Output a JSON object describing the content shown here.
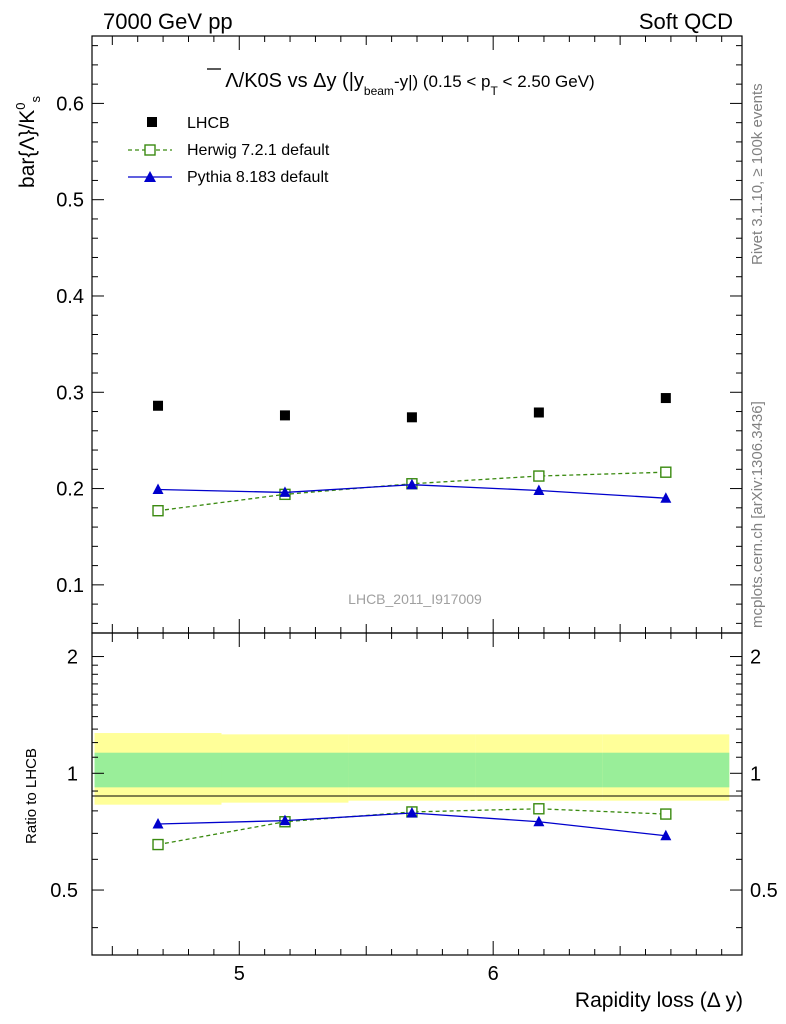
{
  "header": {
    "left_label": "7000 GeV pp",
    "right_label": "Soft QCD"
  },
  "side_labels": {
    "rivet": "Rivet 3.1.10, ≥ 100k events",
    "source": "mcplots.cern.ch [arXiv:1306.3436]"
  },
  "watermark": "LHCB_2011_I917009",
  "chart_data": [
    {
      "panel": "main",
      "type": "line",
      "title_parts": {
        "lambda_bar": "Λ",
        "middle": "/K0S vs Δy (|y",
        "sub_beam": "beam",
        "middle2": "-y|) (0.15 < p",
        "sub_t": "T",
        "end": " < 2.50 GeV)"
      },
      "ylabel": "bar{Λ}/K",
      "ylabel_sup": "0",
      "ylabel_sub": "s",
      "xlabel": "Rapidity loss (Δ y)",
      "xlim": [
        4.42,
        6.98
      ],
      "ylim": [
        0.05,
        0.67
      ],
      "yticks": [
        0.1,
        0.2,
        0.3,
        0.4,
        0.5,
        0.6
      ],
      "ytick_labels": [
        "0.1",
        "0.2",
        "0.3",
        "0.4",
        "0.5",
        "0.6"
      ],
      "x": [
        4.68,
        5.18,
        5.68,
        6.18,
        6.68
      ],
      "series": [
        {
          "name": "LHCB",
          "color": "#000000",
          "marker": "filled-square",
          "line": "none",
          "values": [
            0.286,
            0.276,
            0.274,
            0.279,
            0.294
          ]
        },
        {
          "name": "Herwig 7.2.1 default",
          "color": "#3a8a10",
          "marker": "open-square",
          "line": "dashed",
          "values": [
            0.177,
            0.194,
            0.205,
            0.213,
            0.217
          ]
        },
        {
          "name": "Pythia 8.183 default",
          "color": "#0000cc",
          "marker": "filled-triangle",
          "line": "solid",
          "values": [
            0.199,
            0.196,
            0.204,
            0.198,
            0.19
          ]
        }
      ],
      "legend_position": "top-left"
    },
    {
      "panel": "ratio",
      "type": "line",
      "ylabel": "Ratio to LHCB",
      "xlabel": "Rapidity loss (Δ y)",
      "xlim": [
        4.42,
        6.98
      ],
      "ylim": [
        0.34,
        2.3
      ],
      "yticks": [
        0.5,
        1,
        2
      ],
      "ytick_labels": [
        "0.5",
        "1",
        "2"
      ],
      "xticks": [
        5,
        6
      ],
      "xtick_labels": [
        "5",
        "6"
      ],
      "x": [
        4.68,
        5.18,
        5.68,
        6.18,
        6.68
      ],
      "bands": {
        "bin_edges": [
          4.43,
          4.93,
          5.43,
          5.93,
          6.43,
          6.93
        ],
        "syst_lower": [
          0.83,
          0.84,
          0.85,
          0.85,
          0.85
        ],
        "syst_upper": [
          1.27,
          1.26,
          1.26,
          1.26,
          1.26
        ],
        "stat_lower": [
          0.92,
          0.92,
          0.92,
          0.92,
          0.92
        ],
        "stat_upper": [
          1.13,
          1.13,
          1.13,
          1.13,
          1.13
        ],
        "syst_color": "#ffff99",
        "stat_color": "#99ee99"
      },
      "series": [
        {
          "name": "Herwig 7.2.1 default",
          "color": "#3a8a10",
          "marker": "open-square",
          "line": "dashed",
          "values": [
            0.655,
            0.75,
            0.795,
            0.81,
            0.785
          ]
        },
        {
          "name": "Pythia 8.183 default",
          "color": "#0000cc",
          "marker": "filled-triangle",
          "line": "solid",
          "values": [
            0.74,
            0.755,
            0.79,
            0.75,
            0.69
          ]
        }
      ]
    }
  ]
}
